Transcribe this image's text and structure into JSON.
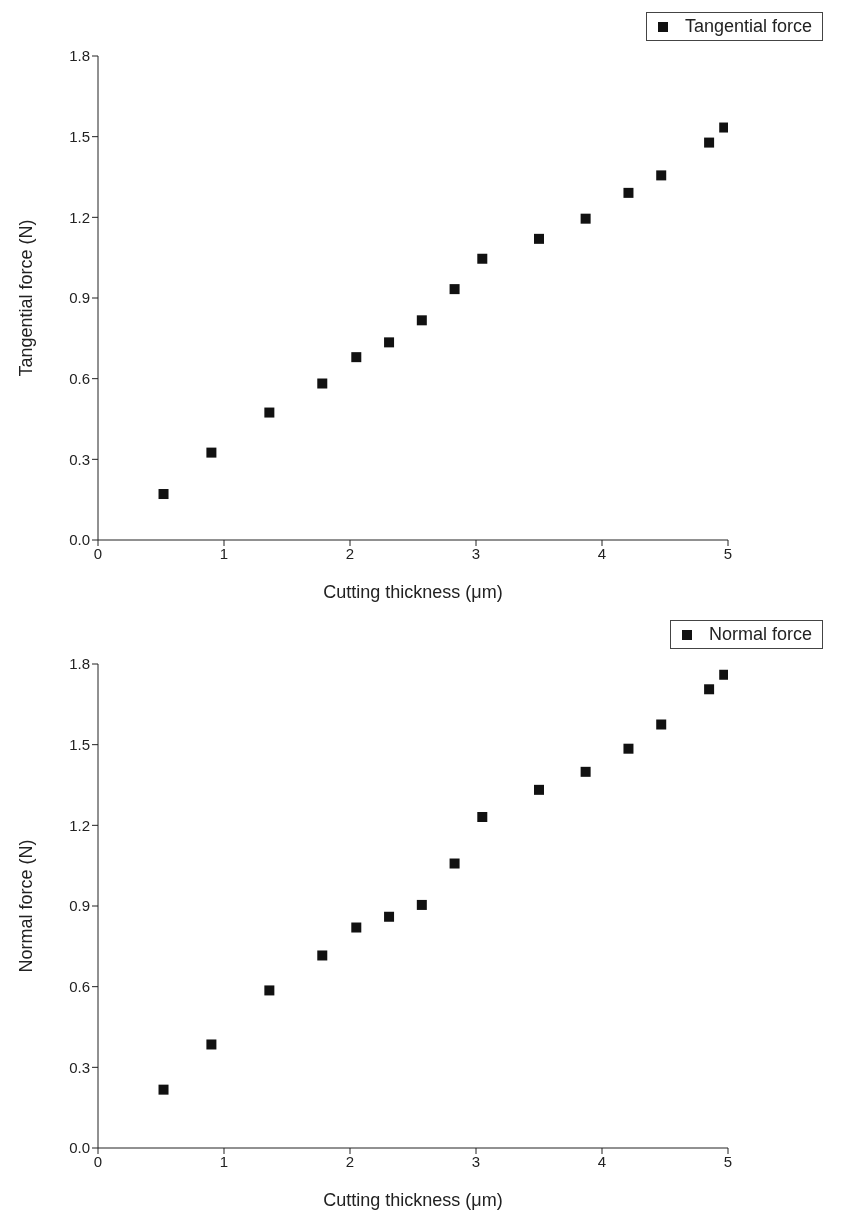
{
  "chart_data": [
    {
      "type": "scatter",
      "xlabel": "Cutting thickness (μm)",
      "ylabel": "Tangential force (N)",
      "xlim": [
        0,
        5
      ],
      "xticks": [
        0,
        1,
        2,
        3,
        4,
        5
      ],
      "ylim": [
        0,
        1.8
      ],
      "yticks": [
        {
          "value": 0,
          "label": "0.0"
        },
        0.3,
        0.6,
        0.9,
        1.2,
        1.5,
        1.8
      ],
      "legend": "top right",
      "marker": "square",
      "grid": false,
      "series": [
        {
          "name": "Tangential force",
          "color": "#111111",
          "x": [
            0.52,
            0.9,
            1.36,
            1.78,
            2.05,
            2.31,
            2.57,
            2.83,
            3.05,
            3.5,
            3.87,
            4.21,
            4.47,
            4.85,
            4.97
          ],
          "values": [
            0.171,
            0.325,
            0.474,
            0.582,
            0.68,
            0.735,
            0.817,
            0.933,
            1.046,
            1.12,
            1.195,
            1.291,
            1.356,
            1.478,
            1.534
          ]
        }
      ]
    },
    {
      "type": "scatter",
      "xlabel": "Cutting thickness (μm)",
      "ylabel": "Normal force (N)",
      "xlim": [
        0,
        5
      ],
      "xticks": [
        0,
        1,
        2,
        3,
        4,
        5
      ],
      "ylim": [
        0,
        1.8
      ],
      "yticks": [
        {
          "value": 0,
          "label": "0.0"
        },
        0.3,
        0.6,
        0.9,
        1.2,
        1.5,
        1.8
      ],
      "legend": "top right",
      "marker": "square",
      "grid": false,
      "series": [
        {
          "name": "Normal force",
          "color": "#111111",
          "x": [
            0.52,
            0.9,
            1.36,
            1.78,
            2.05,
            2.31,
            2.57,
            2.83,
            3.05,
            3.5,
            3.87,
            4.21,
            4.47,
            4.85,
            4.97
          ],
          "values": [
            0.217,
            0.385,
            0.586,
            0.716,
            0.82,
            0.86,
            0.904,
            1.058,
            1.231,
            1.332,
            1.399,
            1.485,
            1.575,
            1.706,
            1.76
          ]
        }
      ]
    }
  ]
}
